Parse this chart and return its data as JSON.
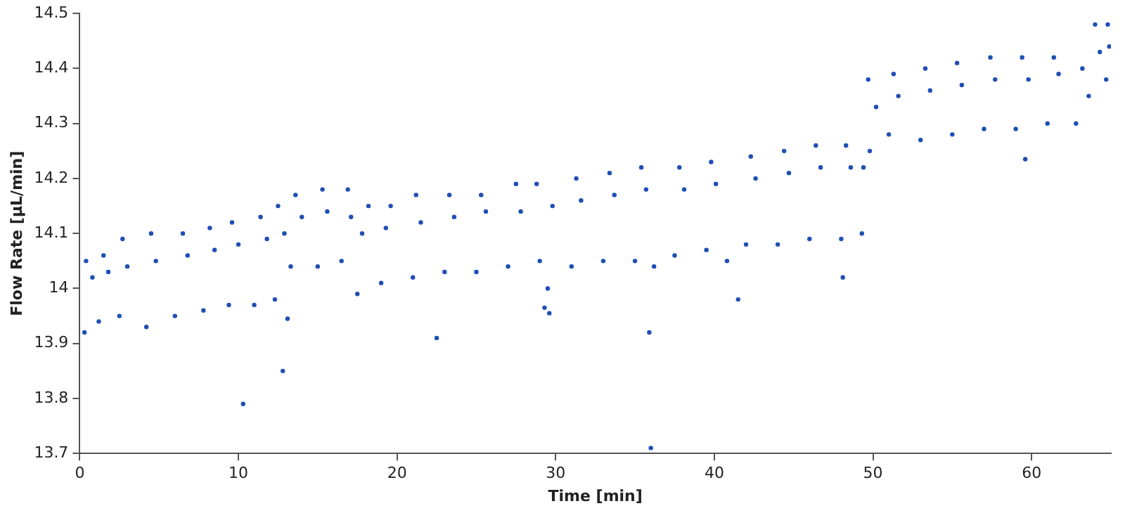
{
  "chart_data": {
    "type": "scatter",
    "xlabel": "Time [min]",
    "ylabel": "Flow Rate [µL/min]",
    "marker": "circle",
    "legend": false,
    "xlim": [
      0,
      65
    ],
    "xticks": [
      0,
      10,
      20,
      30,
      40,
      50,
      60
    ],
    "ylim": [
      13.7,
      14.5
    ],
    "yticks": [
      13.7,
      13.8,
      13.9,
      14,
      14.1,
      14.2,
      14.3,
      14.4,
      14.5
    ],
    "series": [
      {
        "color": "#1f4fb4",
        "x": [
          0.3,
          0.4,
          0.8,
          1.2,
          1.5,
          1.8,
          2.5,
          2.7,
          3.0,
          4.2,
          4.5,
          4.8,
          6.0,
          6.5,
          6.8,
          7.8,
          8.2,
          8.5,
          9.4,
          9.6,
          10.0,
          10.3,
          11.0,
          11.4,
          11.8,
          12.3,
          12.5,
          12.8,
          12.9,
          13.1,
          13.3,
          13.6,
          14.0,
          15.0,
          15.3,
          15.6,
          16.5,
          16.9,
          17.1,
          17.5,
          17.8,
          18.2,
          19.0,
          19.3,
          19.6,
          21.0,
          21.2,
          21.5,
          22.5,
          23.0,
          23.3,
          23.6,
          25.0,
          25.3,
          25.6,
          27.0,
          27.5,
          27.8,
          28.8,
          29.0,
          29.3,
          29.5,
          29.6,
          29.8,
          31.0,
          31.3,
          31.6,
          33.0,
          33.4,
          33.7,
          35.0,
          35.4,
          35.7,
          35.9,
          36.0,
          36.2,
          37.5,
          37.8,
          38.1,
          39.5,
          39.8,
          40.1,
          40.8,
          41.5,
          42.0,
          42.3,
          42.6,
          44.0,
          44.4,
          44.7,
          46.0,
          46.4,
          46.7,
          48.0,
          48.1,
          48.3,
          48.6,
          49.3,
          49.4,
          49.7,
          49.8,
          50.2,
          51.0,
          51.3,
          51.6,
          53.0,
          53.3,
          53.6,
          55.0,
          55.3,
          55.6,
          57.0,
          57.4,
          57.7,
          59.0,
          59.4,
          59.6,
          59.8,
          61.0,
          61.4,
          61.7,
          62.8,
          63.2,
          63.6,
          64.0,
          64.3,
          64.7,
          64.8,
          64.9
        ],
        "values": [
          13.92,
          14.05,
          14.02,
          13.94,
          14.06,
          14.03,
          13.95,
          14.09,
          14.04,
          13.93,
          14.1,
          14.05,
          13.95,
          14.1,
          14.06,
          13.96,
          14.11,
          14.07,
          13.97,
          14.12,
          14.08,
          13.79,
          13.97,
          14.13,
          14.09,
          13.98,
          14.15,
          13.85,
          14.1,
          13.945,
          14.04,
          14.17,
          14.13,
          14.04,
          14.18,
          14.14,
          14.05,
          14.18,
          14.13,
          13.99,
          14.1,
          14.15,
          14.01,
          14.11,
          14.15,
          14.02,
          14.17,
          14.12,
          13.91,
          14.03,
          14.17,
          14.13,
          14.03,
          14.17,
          14.14,
          14.04,
          14.19,
          14.14,
          14.19,
          14.05,
          13.965,
          14.0,
          13.955,
          14.15,
          14.04,
          14.2,
          14.16,
          14.05,
          14.21,
          14.17,
          14.05,
          14.22,
          14.18,
          13.92,
          13.71,
          14.04,
          14.06,
          14.22,
          14.18,
          14.07,
          14.23,
          14.19,
          14.05,
          13.98,
          14.08,
          14.24,
          14.2,
          14.08,
          14.25,
          14.21,
          14.09,
          14.26,
          14.22,
          14.09,
          14.02,
          14.26,
          14.22,
          14.1,
          14.22,
          14.38,
          14.25,
          14.33,
          14.28,
          14.39,
          14.35,
          14.27,
          14.4,
          14.36,
          14.28,
          14.41,
          14.37,
          14.29,
          14.42,
          14.38,
          14.29,
          14.42,
          14.235,
          14.38,
          14.3,
          14.42,
          14.39,
          14.3,
          14.4,
          14.35,
          14.48,
          14.43,
          14.38,
          14.48,
          14.44
        ]
      }
    ]
  }
}
